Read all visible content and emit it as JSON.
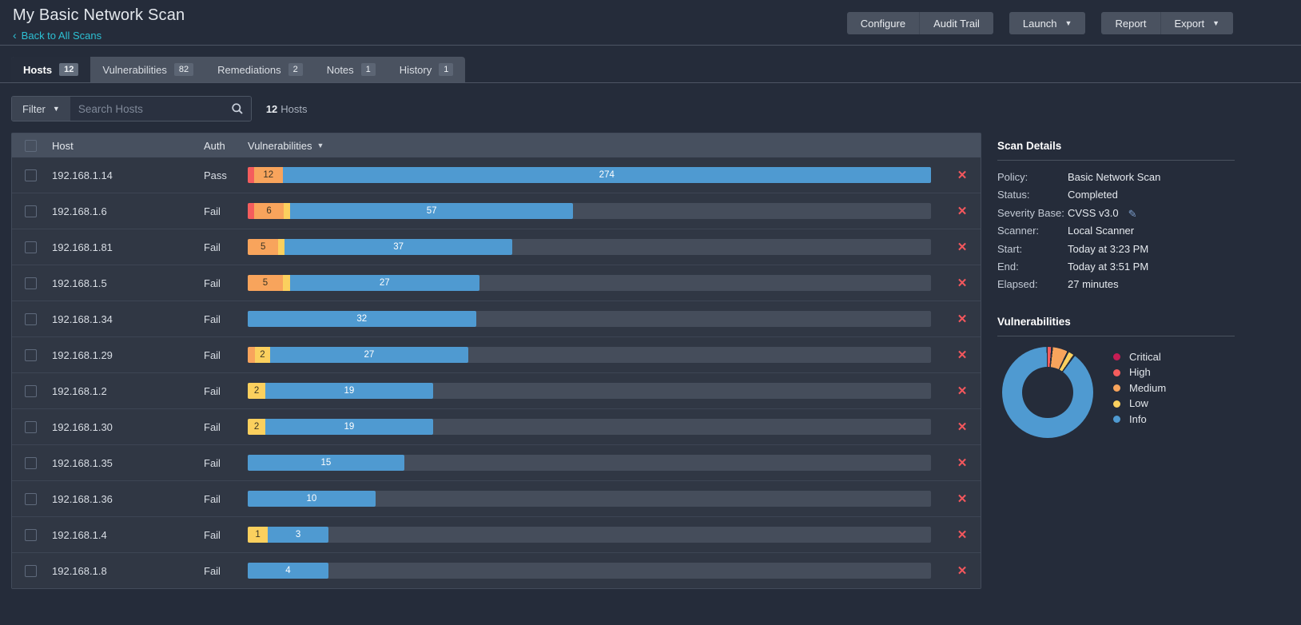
{
  "header": {
    "title": "My Basic Network Scan",
    "back_label": "Back to All Scans",
    "buttons": {
      "configure": "Configure",
      "audit_trail": "Audit Trail",
      "launch": "Launch",
      "report": "Report",
      "export": "Export"
    }
  },
  "tabs": [
    {
      "id": "hosts",
      "label": "Hosts",
      "count": "12",
      "active": true
    },
    {
      "id": "vulnerabilities",
      "label": "Vulnerabilities",
      "count": "82",
      "active": false
    },
    {
      "id": "remediations",
      "label": "Remediations",
      "count": "2",
      "active": false
    },
    {
      "id": "notes",
      "label": "Notes",
      "count": "1",
      "active": false
    },
    {
      "id": "history",
      "label": "History",
      "count": "1",
      "active": false
    }
  ],
  "filter_bar": {
    "filter_label": "Filter",
    "search_placeholder": "Search Hosts",
    "count": "12",
    "count_label": "Hosts"
  },
  "table": {
    "columns": {
      "host": "Host",
      "auth": "Auth",
      "vulnerabilities": "Vulnerabilities"
    },
    "rows": [
      {
        "host": "192.168.1.14",
        "auth": "Pass",
        "segments": [
          {
            "severity": "high",
            "value": 1,
            "labeled": false
          },
          {
            "severity": "medium",
            "value": 12,
            "labeled": true
          },
          {
            "severity": "info",
            "value": 274,
            "labeled": true
          }
        ]
      },
      {
        "host": "192.168.1.6",
        "auth": "Fail",
        "segments": [
          {
            "severity": "high",
            "value": 1,
            "labeled": false
          },
          {
            "severity": "medium",
            "value": 6,
            "labeled": true
          },
          {
            "severity": "low",
            "value": 1,
            "labeled": false
          },
          {
            "severity": "info",
            "value": 57,
            "labeled": true
          }
        ]
      },
      {
        "host": "192.168.1.81",
        "auth": "Fail",
        "segments": [
          {
            "severity": "medium",
            "value": 5,
            "labeled": true
          },
          {
            "severity": "low",
            "value": 1,
            "labeled": false
          },
          {
            "severity": "info",
            "value": 37,
            "labeled": true
          }
        ]
      },
      {
        "host": "192.168.1.5",
        "auth": "Fail",
        "segments": [
          {
            "severity": "medium",
            "value": 5,
            "labeled": true
          },
          {
            "severity": "low",
            "value": 1,
            "labeled": false
          },
          {
            "severity": "info",
            "value": 27,
            "labeled": true
          }
        ]
      },
      {
        "host": "192.168.1.34",
        "auth": "Fail",
        "segments": [
          {
            "severity": "info",
            "value": 32,
            "labeled": true
          }
        ]
      },
      {
        "host": "192.168.1.29",
        "auth": "Fail",
        "segments": [
          {
            "severity": "medium",
            "value": 1,
            "labeled": false
          },
          {
            "severity": "low",
            "value": 2,
            "labeled": true
          },
          {
            "severity": "info",
            "value": 27,
            "labeled": true
          }
        ]
      },
      {
        "host": "192.168.1.2",
        "auth": "Fail",
        "segments": [
          {
            "severity": "low",
            "value": 2,
            "labeled": true
          },
          {
            "severity": "info",
            "value": 19,
            "labeled": true
          }
        ]
      },
      {
        "host": "192.168.1.30",
        "auth": "Fail",
        "segments": [
          {
            "severity": "low",
            "value": 2,
            "labeled": true
          },
          {
            "severity": "info",
            "value": 19,
            "labeled": true
          }
        ]
      },
      {
        "host": "192.168.1.35",
        "auth": "Fail",
        "segments": [
          {
            "severity": "info",
            "value": 15,
            "labeled": true
          }
        ]
      },
      {
        "host": "192.168.1.36",
        "auth": "Fail",
        "segments": [
          {
            "severity": "info",
            "value": 10,
            "labeled": true
          }
        ]
      },
      {
        "host": "192.168.1.4",
        "auth": "Fail",
        "segments": [
          {
            "severity": "low",
            "value": 1,
            "labeled": true
          },
          {
            "severity": "info",
            "value": 3,
            "labeled": true
          }
        ]
      },
      {
        "host": "192.168.1.8",
        "auth": "Fail",
        "segments": [
          {
            "severity": "info",
            "value": 4,
            "labeled": true
          }
        ]
      }
    ]
  },
  "scan_details": {
    "heading": "Scan Details",
    "fields": [
      {
        "label": "Policy:",
        "value": "Basic Network Scan"
      },
      {
        "label": "Status:",
        "value": "Completed"
      },
      {
        "label": "Severity Base:",
        "value": "CVSS v3.0",
        "editable": true
      },
      {
        "label": "Scanner:",
        "value": "Local Scanner"
      },
      {
        "label": "Start:",
        "value": "Today at 3:23 PM"
      },
      {
        "label": "End:",
        "value": "Today at 3:51 PM"
      },
      {
        "label": "Elapsed:",
        "value": "27 minutes"
      }
    ]
  },
  "vulns_panel": {
    "heading": "Vulnerabilities",
    "legend": [
      {
        "label": "Critical",
        "severity": "critical"
      },
      {
        "label": "High",
        "severity": "high"
      },
      {
        "label": "Medium",
        "severity": "medium"
      },
      {
        "label": "Low",
        "severity": "low"
      },
      {
        "label": "Info",
        "severity": "info"
      }
    ]
  },
  "colors": {
    "accent_cyan": "#2dc0d3",
    "delete_red": "#f4575d",
    "page_bg": "#252c3a",
    "severity": {
      "critical": "#c71d54",
      "high": "#f45d5d",
      "medium": "#f8a45c",
      "low": "#fbd05e",
      "info": "#4f9ad1"
    }
  },
  "chart_data": [
    {
      "type": "pie",
      "donut": true,
      "title": "Vulnerabilities",
      "labels": [
        "Critical",
        "High",
        "Medium",
        "Low",
        "Info"
      ],
      "values": [
        0,
        2,
        29,
        10,
        524
      ],
      "values_estimated_from_host_bars": true,
      "legend_position": "right",
      "slice_order_from_top_clockwise": [
        "High",
        "Medium",
        "Low",
        "Info"
      ]
    },
    {
      "type": "bar",
      "orientation": "horizontal",
      "stacked": true,
      "title": "Vulnerabilities per host",
      "scale": "bar length proportional to sqrt(host total), max = 287",
      "categories": [
        "192.168.1.14",
        "192.168.1.6",
        "192.168.1.81",
        "192.168.1.5",
        "192.168.1.34",
        "192.168.1.29",
        "192.168.1.2",
        "192.168.1.30",
        "192.168.1.35",
        "192.168.1.36",
        "192.168.1.4",
        "192.168.1.8"
      ],
      "series": [
        {
          "name": "High",
          "values": [
            1,
            1,
            0,
            0,
            0,
            0,
            0,
            0,
            0,
            0,
            0,
            0
          ]
        },
        {
          "name": "Medium",
          "values": [
            12,
            6,
            5,
            5,
            0,
            1,
            0,
            0,
            0,
            0,
            0,
            0
          ]
        },
        {
          "name": "Low",
          "values": [
            0,
            1,
            1,
            1,
            0,
            2,
            2,
            2,
            0,
            0,
            1,
            0
          ]
        },
        {
          "name": "Info",
          "values": [
            274,
            57,
            37,
            27,
            32,
            27,
            19,
            19,
            15,
            10,
            3,
            4
          ]
        }
      ]
    }
  ]
}
